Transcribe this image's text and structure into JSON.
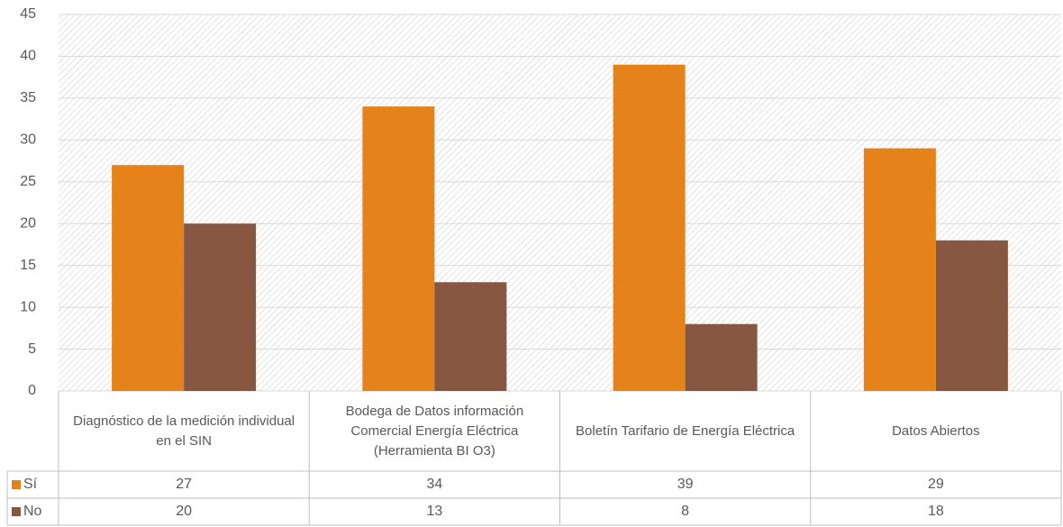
{
  "chart_data": {
    "type": "bar",
    "categories": [
      "Diagnóstico de la medición individual en el SIN",
      "Bodega de Datos información Comercial Energía Eléctrica (Herramienta BI O3)",
      "Boletín Tarifario de Energía Eléctrica",
      "Datos Abiertos"
    ],
    "series": [
      {
        "name": "Sí",
        "color": "#e5831a",
        "values": [
          27,
          34,
          39,
          29
        ]
      },
      {
        "name": "No",
        "color": "#875741",
        "values": [
          20,
          13,
          8,
          18
        ]
      }
    ],
    "ylim": [
      0,
      45
    ],
    "yticks": [
      0,
      5,
      10,
      15,
      20,
      25,
      30,
      35,
      40,
      45
    ],
    "grid": true
  }
}
